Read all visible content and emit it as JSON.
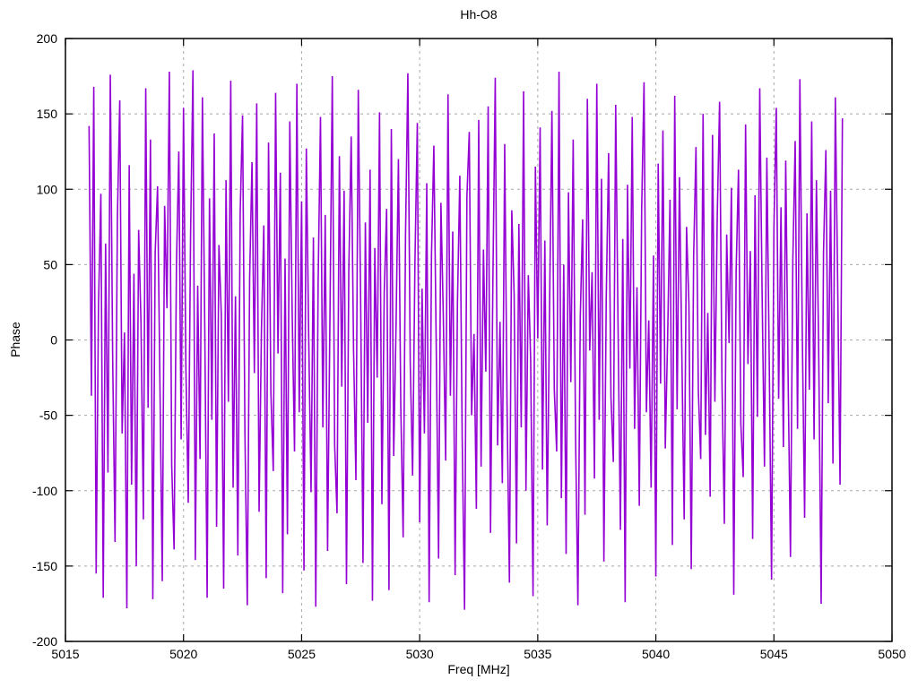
{
  "title": "Hh-O8",
  "chart_data": {
    "type": "line",
    "title": "Hh-O8",
    "xlabel": "Freq [MHz]",
    "ylabel": "Phase",
    "xlim": [
      5015,
      5050
    ],
    "ylim": [
      -200,
      200
    ],
    "xticks": [
      5015,
      5020,
      5025,
      5030,
      5035,
      5040,
      5045,
      5050
    ],
    "yticks": [
      -200,
      -150,
      -100,
      -50,
      0,
      50,
      100,
      150,
      200
    ],
    "grid": true,
    "legend": "none",
    "line_color": "#9400D3",
    "grid_color": "#a8a8a8",
    "axis_color": "#000000",
    "x_start": 5016.0,
    "x_step": 0.1,
    "x_unit": "MHz",
    "y_unit": "degrees",
    "values": [
      142,
      -37,
      168,
      -155,
      23,
      97,
      -171,
      64,
      -88,
      176,
      -12,
      -134,
      81,
      159,
      -62,
      5,
      -178,
      116,
      -96,
      44,
      -150,
      73,
      11,
      -119,
      167,
      -45,
      133,
      -172,
      58,
      102,
      -27,
      -160,
      89,
      21,
      178,
      -83,
      -139,
      49,
      125,
      -66,
      154,
      -18,
      -108,
      71,
      179,
      -146,
      36,
      -79,
      161,
      8,
      -171,
      94,
      -53,
      137,
      -124,
      63,
      17,
      -165,
      106,
      -41,
      172,
      -98,
      29,
      -143,
      85,
      149,
      -61,
      -176,
      41,
      118,
      -22,
      157,
      -114,
      7,
      76,
      -158,
      131,
      -35,
      -87,
      164,
      -9,
      111,
      -168,
      54,
      -129,
      145,
      19,
      -74,
      170,
      -48,
      92,
      -153,
      127,
      3,
      -101,
      68,
      -177,
      38,
      148,
      -58,
      83,
      -140,
      14,
      175,
      -70,
      -115,
      122,
      -31,
      99,
      -162,
      47,
      135,
      -6,
      -93,
      166,
      26,
      -148,
      78,
      -55,
      113,
      -173,
      61,
      -25,
      151,
      -109,
      32,
      87,
      -166,
      140,
      -77,
      10,
      120,
      -44,
      -131,
      69,
      177,
      -15,
      -90,
      52,
      144,
      -121,
      34,
      -62,
      104,
      -174,
      56,
      129,
      -3,
      -145,
      91,
      16,
      -80,
      163,
      -37,
      72,
      -156,
      25,
      109,
      -65,
      -179,
      95,
      138,
      -50,
      4,
      -112,
      146,
      -84,
      60,
      -21,
      155,
      -128,
      40,
      174,
      -70,
      12,
      -95,
      130,
      -44,
      -161,
      86,
      30,
      -135,
      77,
      -58,
      165,
      -100,
      43,
      -13,
      -170,
      115,
      1,
      141,
      -86,
      66,
      -123,
      22,
      152,
      -33,
      -74,
      178,
      -105,
      50,
      -142,
      98,
      -28,
      133,
      -64,
      -176,
      15,
      80,
      -116,
      160,
      -7,
      45,
      -92,
      170,
      -53,
      107,
      -147,
      28,
      124,
      -38,
      -81,
      156,
      9,
      -126,
      67,
      -174,
      103,
      -19,
      148,
      -59,
      35,
      -110,
      87,
      171,
      -48,
      13,
      -98,
      56,
      -157,
      117,
      -29,
      139,
      -72,
      2,
      93,
      -136,
      162,
      -46,
      108,
      -8,
      -119,
      75,
      24,
      -152,
      55,
      128,
      -34,
      -79,
      150,
      -63,
      18,
      -104,
      136,
      -41,
      82,
      158,
      -27,
      -122,
      70,
      -2,
      101,
      -169,
      46,
      113,
      -56,
      -91,
      143,
      -16,
      59,
      -132,
      96,
      -51,
      167,
      31,
      -84,
      121,
      -11,
      -159,
      74,
      154,
      -39,
      88,
      -71,
      119,
      -23,
      -144,
      52,
      132,
      -59,
      173,
      6,
      -118,
      84,
      -33,
      145,
      -66,
      106,
      -14,
      -175,
      58,
      126,
      -42,
      99,
      -82,
      161,
      37,
      -96,
      147
    ]
  }
}
